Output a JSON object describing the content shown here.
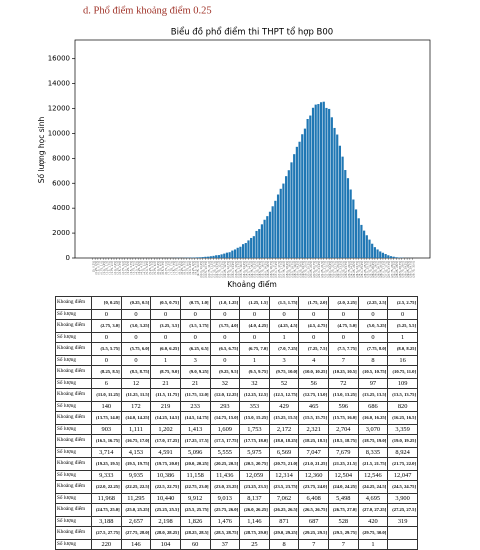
{
  "header": {
    "title": "d.  Phổ điểm khoảng điểm 0.25"
  },
  "chart_data": {
    "type": "histogram",
    "title": "Biểu đồ phổ điểm thi THPT tổ hợp B00",
    "ylabel": "Số lượng học sinh",
    "xlabel": "Khoảng điểm",
    "color": "#1f77b4",
    "bins": [
      0,
      0.25,
      0.5,
      0.75,
      1,
      1.25,
      1.5,
      1.75,
      2,
      2.25,
      2.5,
      2.75,
      3,
      3.25,
      3.5,
      3.75,
      4,
      4.25,
      4.5,
      4.75,
      5,
      5.25,
      5.5,
      5.75,
      6,
      6.25,
      6.5,
      6.75,
      7,
      7.25,
      7.5,
      7.75,
      8,
      8.25,
      8.5,
      8.75,
      9,
      9.25,
      9.5,
      9.75,
      10,
      10.25,
      10.5,
      10.75,
      11,
      11.25,
      11.5,
      11.75,
      12,
      12.25,
      12.5,
      12.75,
      13,
      13.25,
      13.5,
      13.75,
      14,
      14.25,
      14.5,
      14.75,
      15,
      15.25,
      15.5,
      15.75,
      16,
      16.25,
      16.5,
      16.75,
      17,
      17.25,
      17.5,
      17.75,
      18,
      18.25,
      18.5,
      18.75,
      19,
      19.25,
      19.5,
      19.75,
      20,
      20.25,
      20.5,
      20.75,
      21,
      21.25,
      21.5,
      21.75,
      22,
      22.25,
      22.5,
      22.75,
      23,
      23.25,
      23.5,
      23.75,
      24,
      24.25,
      24.5,
      24.75,
      25,
      25.25,
      25.5,
      25.75,
      26,
      26.25,
      26.5,
      26.75,
      27,
      27.25,
      27.5,
      27.75,
      28,
      28.25,
      28.5,
      28.75,
      29,
      29.25,
      29.5,
      29.75,
      30
    ],
    "values": [
      0,
      0,
      0,
      0,
      0,
      0,
      0,
      0,
      0,
      0,
      0,
      0,
      0,
      0,
      0,
      0,
      0,
      1,
      0,
      0,
      0,
      1,
      0,
      0,
      1,
      3,
      0,
      1,
      3,
      4,
      7,
      8,
      16,
      6,
      12,
      21,
      21,
      32,
      32,
      52,
      56,
      72,
      97,
      109,
      140,
      172,
      219,
      233,
      293,
      353,
      429,
      465,
      596,
      686,
      820,
      903,
      1111,
      1202,
      1413,
      1609,
      1753,
      2172,
      2321,
      2704,
      3070,
      3359,
      3714,
      4153,
      4591,
      5096,
      5555,
      5975,
      6569,
      7047,
      7679,
      8335,
      8924,
      9333,
      9935,
      10386,
      11158,
      11436,
      12059,
      12314,
      12360,
      12504,
      12546,
      12047,
      11968,
      11295,
      10440,
      9912,
      9013,
      8137,
      7062,
      6408,
      5498,
      4695,
      3900,
      3188,
      2657,
      2198,
      1826,
      1476,
      1146,
      871,
      687,
      528,
      420,
      319,
      220,
      146,
      104,
      60,
      37,
      25,
      8,
      7,
      7,
      1
    ],
    "xlim": [
      -1.5,
      31.5
    ],
    "ylim": [
      0,
      17500
    ],
    "yticks": [
      0,
      2000,
      4000,
      6000,
      8000,
      10000,
      12000,
      14000,
      16000
    ]
  },
  "table": {
    "range_label": "Khoảng điểm",
    "count_label": "Số lượng",
    "rows": [
      {
        "ranges": [
          "[0, 0.25]",
          "(0.25, 0.5]",
          "(0.5, 0.75]",
          "(0.75, 1.0]",
          "(1.0, 1.25]",
          "(1.25, 1.5]",
          "(1.5, 1.75]",
          "(1.75, 2.0]",
          "(2.0, 2.25]",
          "(2.25, 2.5]",
          "(2.5, 2.75]"
        ],
        "counts": [
          "0",
          "0",
          "0",
          "0",
          "0",
          "0",
          "0",
          "0",
          "0",
          "0",
          "0"
        ]
      },
      {
        "ranges": [
          "(2.75, 3.0]",
          "(3.0, 3.25]",
          "(3.25, 3.5]",
          "(3.5, 3.75]",
          "(3.75, 4.0]",
          "(4.0, 4.25]",
          "(4.25, 4.5]",
          "(4.5, 4.75]",
          "(4.75, 5.0]",
          "(5.0, 5.25]",
          "(5.25, 5.5]"
        ],
        "counts": [
          "0",
          "0",
          "0",
          "0",
          "0",
          "0",
          "1",
          "0",
          "0",
          "0",
          "1"
        ]
      },
      {
        "ranges": [
          "(5.5, 5.75]",
          "(5.75, 6.0]",
          "(6.0, 6.25]",
          "(6.25, 6.5]",
          "(6.5, 6.75]",
          "(6.75, 7.0]",
          "(7.0, 7.25]",
          "(7.25, 7.5]",
          "(7.5, 7.75]",
          "(7.75, 8.0]",
          "(8.0, 8.25]"
        ],
        "counts": [
          "0",
          "0",
          "1",
          "3",
          "0",
          "1",
          "3",
          "4",
          "7",
          "8",
          "16"
        ]
      },
      {
        "ranges": [
          "(8.25, 8.5]",
          "(8.5, 8.75]",
          "(8.75, 9.0]",
          "(9.0, 9.25]",
          "(9.25, 9.5]",
          "(9.5, 9.75]",
          "(9.75, 10.0]",
          "(10.0, 10.25]",
          "(10.25, 10.5]",
          "(10.5, 10.75]",
          "(10.75, 11.0]"
        ],
        "counts": [
          "6",
          "12",
          "21",
          "21",
          "32",
          "32",
          "52",
          "56",
          "72",
          "97",
          "109"
        ]
      },
      {
        "ranges": [
          "(11.0, 11.25]",
          "(11.25, 11.5]",
          "(11.5, 11.75]",
          "(11.75, 12.0]",
          "(12.0, 12.25]",
          "(12.25, 12.5]",
          "(12.5, 12.75]",
          "(12.75, 13.0]",
          "(13.0, 13.25]",
          "(13.25, 13.5]",
          "(13.5, 13.75]"
        ],
        "counts": [
          "140",
          "172",
          "219",
          "233",
          "293",
          "353",
          "429",
          "465",
          "596",
          "686",
          "820"
        ]
      },
      {
        "ranges": [
          "(13.75, 14.0]",
          "(14.0, 14.25]",
          "(14.25, 14.5]",
          "(14.5, 14.75]",
          "(14.75, 15.0]",
          "(15.0, 15.25]",
          "(15.25, 15.5]",
          "(15.5, 15.75]",
          "(15.75, 16.0]",
          "(16.0, 16.25]",
          "(16.25, 16.5]"
        ],
        "counts": [
          "903",
          "1,111",
          "1,202",
          "1,413",
          "1,609",
          "1,753",
          "2,172",
          "2,321",
          "2,704",
          "3,070",
          "3,359"
        ]
      },
      {
        "ranges": [
          "(16.5, 16.75]",
          "(16.75, 17.0]",
          "(17.0, 17.25]",
          "(17.25, 17.5]",
          "(17.5, 17.75]",
          "(17.75, 18.0]",
          "(18.0, 18.25]",
          "(18.25, 18.5]",
          "(18.5, 18.75]",
          "(18.75, 19.0]",
          "(19.0, 19.25]"
        ],
        "counts": [
          "3,714",
          "4,153",
          "4,591",
          "5,096",
          "5,555",
          "5,975",
          "6,569",
          "7,047",
          "7,679",
          "8,335",
          "8,924"
        ]
      },
      {
        "ranges": [
          "(19.25, 19.5]",
          "(19.5, 19.75]",
          "(19.75, 20.0]",
          "(20.0, 20.25]",
          "(20.25, 20.5]",
          "(20.5, 20.75]",
          "(20.75, 21.0]",
          "(21.0, 21.25]",
          "(21.25, 21.5]",
          "(21.5, 21.75]",
          "(21.75, 22.0]"
        ],
        "counts": [
          "9,333",
          "9,935",
          "10,386",
          "11,158",
          "11,436",
          "12,059",
          "12,314",
          "12,360",
          "12,504",
          "12,546",
          "12,047"
        ]
      },
      {
        "ranges": [
          "(22.0, 22.25]",
          "(22.25, 22.5]",
          "(22.5, 22.75]",
          "(22.75, 23.0]",
          "(23.0, 23.25]",
          "(23.25, 23.5]",
          "(23.5, 23.75]",
          "(23.75, 24.0]",
          "(24.0, 24.25]",
          "(24.25, 24.5]",
          "(24.5, 24.75]"
        ],
        "counts": [
          "11,968",
          "11,295",
          "10,440",
          "9,912",
          "9,013",
          "8,137",
          "7,062",
          "6,408",
          "5,498",
          "4,695",
          "3,900"
        ]
      },
      {
        "ranges": [
          "(24.75, 25.0]",
          "(25.0, 25.25]",
          "(25.25, 25.5]",
          "(25.5, 25.75]",
          "(25.75, 26.0]",
          "(26.0, 26.25]",
          "(26.25, 26.5]",
          "(26.5, 26.75]",
          "(26.75, 27.0]",
          "(27.0, 27.25]",
          "(27.25, 27.5]"
        ],
        "counts": [
          "3,188",
          "2,657",
          "2,198",
          "1,826",
          "1,476",
          "1,146",
          "871",
          "687",
          "528",
          "420",
          "319"
        ]
      },
      {
        "ranges": [
          "(27.5, 27.75]",
          "(27.75, 28.0]",
          "(28.0, 28.25]",
          "(28.25, 28.5]",
          "(28.5, 28.75]",
          "(28.75, 29.0]",
          "(29.0, 29.25]",
          "(29.25, 29.5]",
          "(29.5, 29.75]",
          "(29.75, 30.0]"
        ],
        "counts": [
          "220",
          "146",
          "104",
          "60",
          "37",
          "25",
          "8",
          "7",
          "7",
          "1"
        ]
      }
    ]
  }
}
